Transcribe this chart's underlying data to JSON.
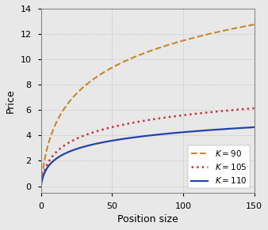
{
  "title": "",
  "xlabel": "Position size",
  "ylabel": "Price",
  "xlim": [
    0,
    150
  ],
  "ylim": [
    -0.5,
    14
  ],
  "yticks": [
    0,
    2,
    4,
    6,
    8,
    10,
    12,
    14
  ],
  "xticks": [
    0,
    50,
    100,
    150
  ],
  "grid_color": "#b0b0b8",
  "background_color": "#e8e8e8",
  "plot_bg_color": "#e8e8e8",
  "lines": [
    {
      "label": "$K = 90$",
      "color": "#c8882a",
      "linestyle": "--",
      "asymptote": 12.75,
      "rate": 0.35,
      "linewidth": 1.5
    },
    {
      "label": "$K = 105$",
      "color": "#cc3333",
      "linestyle": ":",
      "asymptote": 6.15,
      "rate": 0.55,
      "linewidth": 1.8
    },
    {
      "label": "$K = 110$",
      "color": "#2244aa",
      "linestyle": "-",
      "asymptote": 4.65,
      "rate": 0.75,
      "linewidth": 1.6
    }
  ],
  "legend_loc": "lower right",
  "legend_fontsize": 7.5,
  "axis_fontsize": 9,
  "tick_fontsize": 8
}
